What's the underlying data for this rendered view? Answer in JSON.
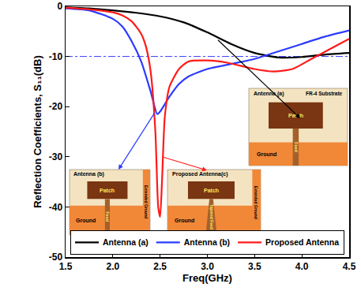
{
  "chart_data": {
    "type": "line",
    "x_label": "Freq(GHz)",
    "y_label": "Reflection Coefficients, S₁₁(dB)",
    "xlim": [
      1.5,
      4.5
    ],
    "xticks": [
      1.5,
      {
        "value": 2,
        "label": "2.0"
      },
      2.5,
      {
        "value": 3,
        "label": "3.0"
      },
      3.5,
      {
        "value": 4,
        "label": "4.0"
      },
      4.5
    ],
    "ylim": [
      -50,
      0
    ],
    "yticks": [
      -50,
      -40,
      -30,
      -20,
      -10,
      0
    ],
    "grid": false,
    "legend": "bottom",
    "reference_line": {
      "value": -10,
      "color": "#3a3aff",
      "line_style": "dashdot"
    },
    "series": [
      {
        "name": "Antenna (a)",
        "color": "#000000",
        "line_style": "solid",
        "x": [
          1.5,
          1.75,
          2.0,
          2.25,
          2.5,
          2.75,
          3.0,
          3.25,
          3.5,
          3.75,
          4.0,
          4.25,
          4.5
        ],
        "values": [
          -0.2,
          -0.4,
          -0.8,
          -1.3,
          -2.0,
          -3.2,
          -5.2,
          -7.5,
          -9.3,
          -10.2,
          -10.1,
          -9.6,
          -9.3
        ]
      },
      {
        "name": "Antenna (b)",
        "color": "#2a3bff",
        "line_style": "solid",
        "x": [
          1.5,
          1.75,
          2.0,
          2.1,
          2.2,
          2.3,
          2.4,
          2.47,
          2.5,
          2.6,
          2.7,
          2.8,
          3.0,
          3.25,
          3.5,
          3.75,
          4.0,
          4.25,
          4.5
        ],
        "values": [
          -0.4,
          -0.8,
          -2.5,
          -4,
          -7,
          -11,
          -17,
          -21.5,
          -21,
          -18,
          -15.5,
          -14,
          -12.5,
          -11.5,
          -10.5,
          -9,
          -7.5,
          -6,
          -4.8
        ]
      },
      {
        "name": "Proposed Antenna",
        "color": "#ff1a1a",
        "line_style": "solid",
        "x": [
          1.5,
          1.75,
          2.0,
          2.1,
          2.2,
          2.3,
          2.35,
          2.4,
          2.45,
          2.48,
          2.5,
          2.52,
          2.55,
          2.6,
          2.7,
          2.8,
          3.0,
          3.2,
          3.5,
          3.7,
          3.9,
          4.1,
          4.3,
          4.5
        ],
        "values": [
          -0.3,
          -0.6,
          -1.2,
          -1.8,
          -3,
          -5.5,
          -8,
          -13,
          -25,
          -40,
          -42,
          -35,
          -22,
          -16,
          -12.5,
          -11,
          -10.8,
          -11.2,
          -12.5,
          -13,
          -12.5,
          -10.5,
          -8.5,
          -6.5
        ]
      }
    ],
    "insets": [
      {
        "label": "Antenna (a)",
        "substrate": "FR-4 Substrate",
        "patch": "Patch",
        "feed": "Feed",
        "ground": "Ground"
      },
      {
        "label": "Antenna (b)",
        "patch": "Patch",
        "feed": "Feed",
        "ground": "Ground",
        "extended_ground": "Extended Ground"
      },
      {
        "label": "Proposed Antenna(c)",
        "patch": "Patch",
        "feed": "Tapered Feed",
        "ground": "Ground",
        "extended_ground": "Extended Ground"
      }
    ]
  }
}
